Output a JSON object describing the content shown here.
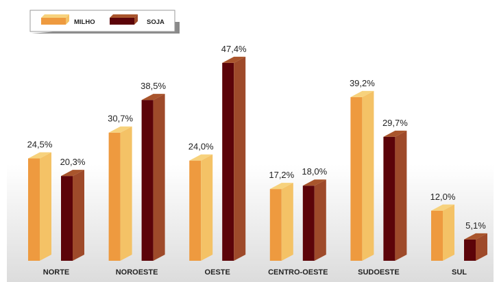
{
  "chart_data": {
    "type": "bar",
    "categories": [
      "NORTE",
      "NOROESTE",
      "OESTE",
      "CENTRO-OESTE",
      "SUDOESTE",
      "SUL"
    ],
    "series": [
      {
        "name": "MILHO",
        "values": [
          24.5,
          30.7,
          24.0,
          17.2,
          39.2,
          12.0
        ],
        "labels": [
          "24,5%",
          "30,7%",
          "24,0%",
          "17,2%",
          "39,2%",
          "12,0%"
        ]
      },
      {
        "name": "SOJA",
        "values": [
          20.3,
          38.5,
          47.4,
          18.0,
          29.7,
          5.1
        ],
        "labels": [
          "20,3%",
          "38,5%",
          "47,4%",
          "18,0%",
          "29,7%",
          "5,1%"
        ]
      }
    ],
    "ylim": [
      0,
      50
    ],
    "legend_position": "top-left",
    "grid": false,
    "colors": {
      "milho_front": "#EE9A3F",
      "milho_side": "#F4C266",
      "milho_top": "#F7D27D",
      "soja_front": "#5C0409",
      "soja_side": "#9E4A2A",
      "soja_top": "#A9552C"
    }
  }
}
